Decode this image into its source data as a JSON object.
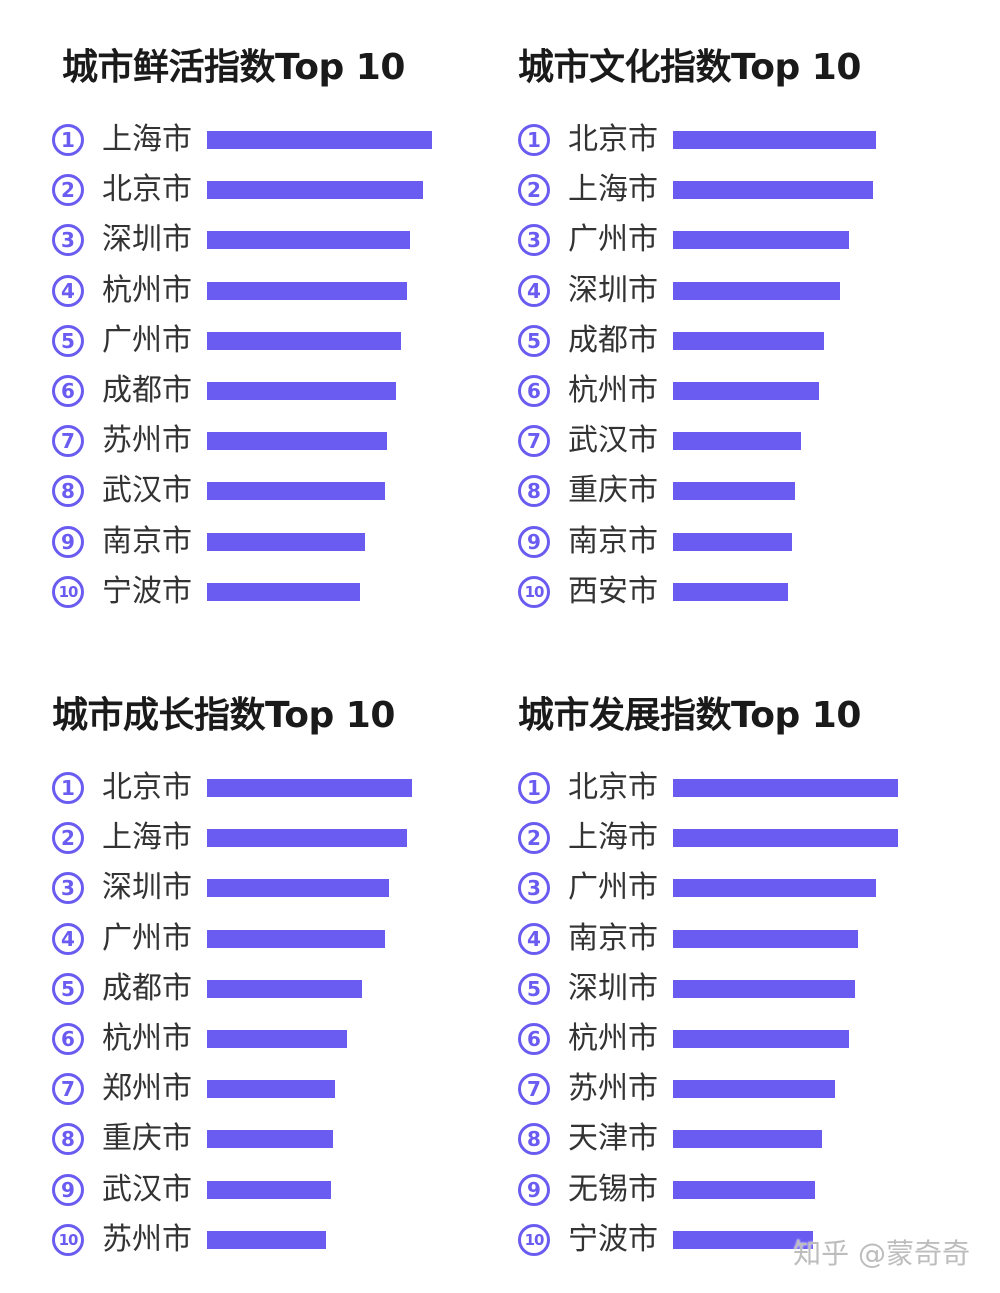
{
  "chart_data": [
    {
      "type": "bar",
      "title": "城市鲜活指数Top 10",
      "ranks": [
        "①",
        "②",
        "③",
        "④",
        "⑤",
        "⑥",
        "⑦",
        "⑧",
        "⑨",
        "⑩"
      ],
      "categories": [
        "上海市",
        "北京市",
        "深圳市",
        "杭州市",
        "广州市",
        "成都市",
        "苏州市",
        "武汉市",
        "南京市",
        "宁波市"
      ],
      "values": [
        100,
        96,
        90,
        89,
        86,
        84,
        80,
        79,
        70,
        68
      ]
    },
    {
      "type": "bar",
      "title": "城市文化指数Top 10",
      "ranks": [
        "①",
        "②",
        "③",
        "④",
        "⑤",
        "⑥",
        "⑦",
        "⑧",
        "⑨",
        "⑩"
      ],
      "categories": [
        "北京市",
        "上海市",
        "广州市",
        "深圳市",
        "成都市",
        "杭州市",
        "武汉市",
        "重庆市",
        "南京市",
        "西安市"
      ],
      "values": [
        90,
        89,
        78,
        74,
        67,
        65,
        57,
        54,
        53,
        51
      ]
    },
    {
      "type": "bar",
      "title": "城市成长指数Top 10",
      "ranks": [
        "①",
        "②",
        "③",
        "④",
        "⑤",
        "⑥",
        "⑦",
        "⑧",
        "⑨",
        "⑩"
      ],
      "categories": [
        "北京市",
        "上海市",
        "深圳市",
        "广州市",
        "成都市",
        "杭州市",
        "郑州市",
        "重庆市",
        "武汉市",
        "苏州市"
      ],
      "values": [
        91,
        89,
        81,
        79,
        69,
        62,
        57,
        56,
        55,
        53
      ]
    },
    {
      "type": "bar",
      "title": "城市发展指数Top 10",
      "ranks": [
        "①",
        "②",
        "③",
        "④",
        "⑤",
        "⑥",
        "⑦",
        "⑧",
        "⑨",
        "⑩"
      ],
      "categories": [
        "北京市",
        "上海市",
        "广州市",
        "南京市",
        "深圳市",
        "杭州市",
        "苏州市",
        "天津市",
        "无锡市",
        "宁波市"
      ],
      "values": [
        100,
        100,
        90,
        82,
        81,
        78,
        72,
        66,
        63,
        62
      ]
    }
  ],
  "watermark": "知乎 @蒙奇奇",
  "colors": {
    "bar": "#6a5cf0",
    "title": "#1a1a1a",
    "text": "#333333"
  }
}
